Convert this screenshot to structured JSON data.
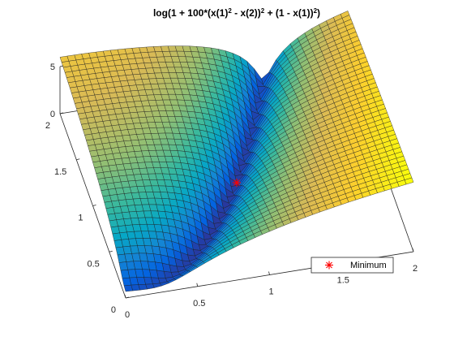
{
  "chart_data": {
    "type": "surface",
    "title": "log(1 + 100*(x(1)^2 - x(2))^2 + (1 - x(1))^2)",
    "title_parts": {
      "a": "log(1 + 100*(x(1)",
      "a_sup": "2",
      "b": " - x(2))",
      "b_sup": "2",
      "c": " + (1 - x(1))",
      "c_sup": "2",
      "d": ")"
    },
    "function": "log(1 + 100*(x1^2 - x2)^2 + (1 - x1)^2)",
    "x1_range": [
      0,
      2
    ],
    "x2_range": [
      0,
      2
    ],
    "zlim": [
      0,
      5
    ],
    "x1_ticks": [
      "0",
      "0.5",
      "1",
      "1.5",
      "2"
    ],
    "x2_ticks": [
      "0",
      "0.5",
      "1",
      "1.5",
      "2"
    ],
    "z_ticks": [
      "0",
      "5"
    ],
    "colormap": "parula",
    "colormap_stops": [
      "#352a87",
      "#0363e1",
      "#1485d4",
      "#06a7c6",
      "#38b99e",
      "#92bf73",
      "#d9ba56",
      "#fcce2e",
      "#f9fb0e"
    ],
    "minimum": {
      "x1": 1,
      "x2": 1,
      "z": 0,
      "marker": "asterisk",
      "color": "#ff0000"
    },
    "legend": {
      "entries": [
        "Minimum"
      ],
      "placement": "bottom-right"
    },
    "grid": true
  }
}
